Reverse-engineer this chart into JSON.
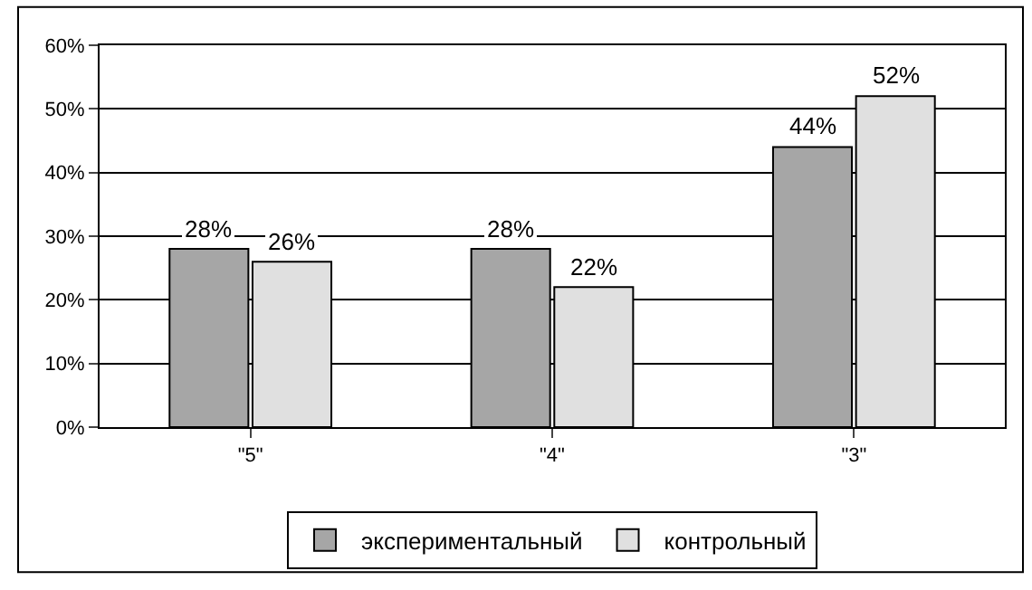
{
  "chart_data": {
    "type": "bar",
    "categories": [
      "\"5\"",
      "\"4\"",
      "\"3\""
    ],
    "series": [
      {
        "name": "экспериментальный",
        "color": "#a6a6a6",
        "values": [
          28,
          28,
          44
        ],
        "value_labels": [
          "28%",
          "28%",
          "44%"
        ]
      },
      {
        "name": "контрольный",
        "color": "#e0e0e0",
        "values": [
          26,
          22,
          52
        ],
        "value_labels": [
          "26%",
          "22%",
          "52%"
        ]
      }
    ],
    "ylim": [
      0,
      60
    ],
    "yticks": [
      {
        "value": 0,
        "label": "0%"
      },
      {
        "value": 10,
        "label": "10%"
      },
      {
        "value": 20,
        "label": "20%"
      },
      {
        "value": 30,
        "label": "30%"
      },
      {
        "value": 40,
        "label": "40%"
      },
      {
        "value": 50,
        "label": "50%"
      },
      {
        "value": 60,
        "label": "60%"
      }
    ],
    "grid": "y",
    "legend": "bottom"
  }
}
